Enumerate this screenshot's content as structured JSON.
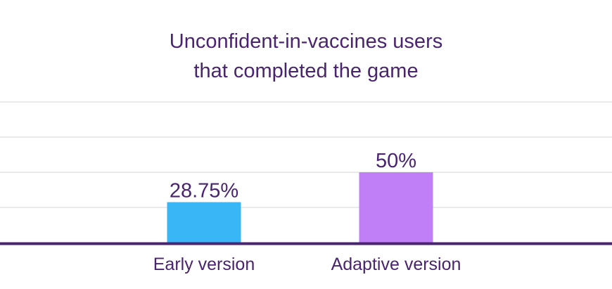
{
  "chart_data": {
    "type": "bar",
    "title_lines": [
      "Unconfident-in-vaccines users",
      "that completed the game"
    ],
    "categories": [
      "Early version",
      "Adaptive version"
    ],
    "values": [
      28.75,
      50
    ],
    "value_labels": [
      "28.75%",
      "50%"
    ],
    "ylim": [
      0,
      100
    ],
    "grid": true,
    "xlabel": "",
    "ylabel": "",
    "colors": {
      "bars": [
        "#38b6f6",
        "#c07ff7"
      ],
      "text": "#4a2470",
      "axis": "#4a2470",
      "grid": "#e4e4e4"
    }
  }
}
